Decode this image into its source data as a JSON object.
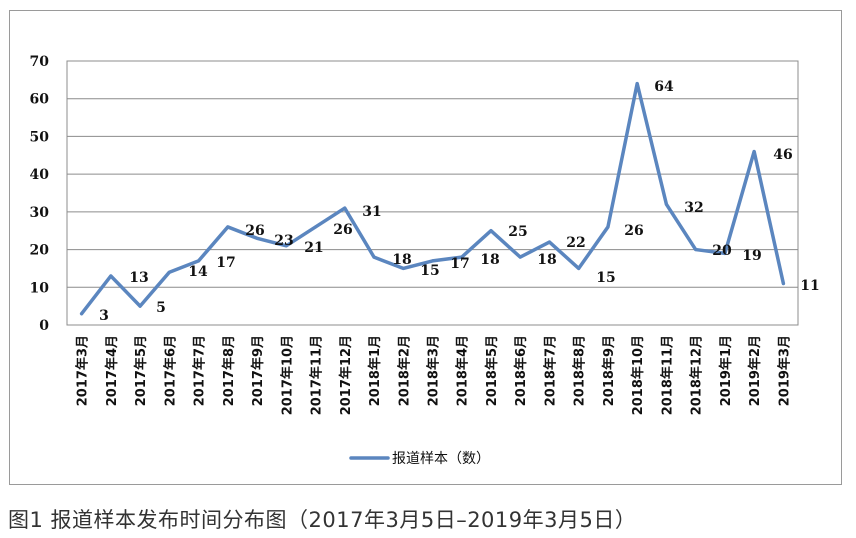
{
  "caption": "图1  报道样本发布时间分布图（2017年3月5日–2019年3月5日）",
  "chart_data": {
    "type": "line",
    "categories": [
      "2017年3月",
      "2017年4月",
      "2017年5月",
      "2017年6月",
      "2017年7月",
      "2017年8月",
      "2017年9月",
      "2017年10月",
      "2017年11月",
      "2017年12月",
      "2018年1月",
      "2018年2月",
      "2018年3月",
      "2018年4月",
      "2018年5月",
      "2018年6月",
      "2018年7月",
      "2018年8月",
      "2018年9月",
      "2018年10月",
      "2018年11月",
      "2018年12月",
      "2019年1月",
      "2019年2月",
      "2019年3月"
    ],
    "series": [
      {
        "name": "报道样本（数）",
        "values": [
          3,
          13,
          5,
          14,
          17,
          26,
          23,
          21,
          26,
          31,
          18,
          15,
          17,
          18,
          25,
          18,
          22,
          15,
          26,
          64,
          32,
          20,
          19,
          46,
          11
        ],
        "color": "#5b86bf"
      }
    ],
    "ylim": [
      0,
      70
    ],
    "yticks": [
      0,
      10,
      20,
      30,
      40,
      50,
      60,
      70
    ],
    "grid": true,
    "legend_position": "bottom"
  }
}
